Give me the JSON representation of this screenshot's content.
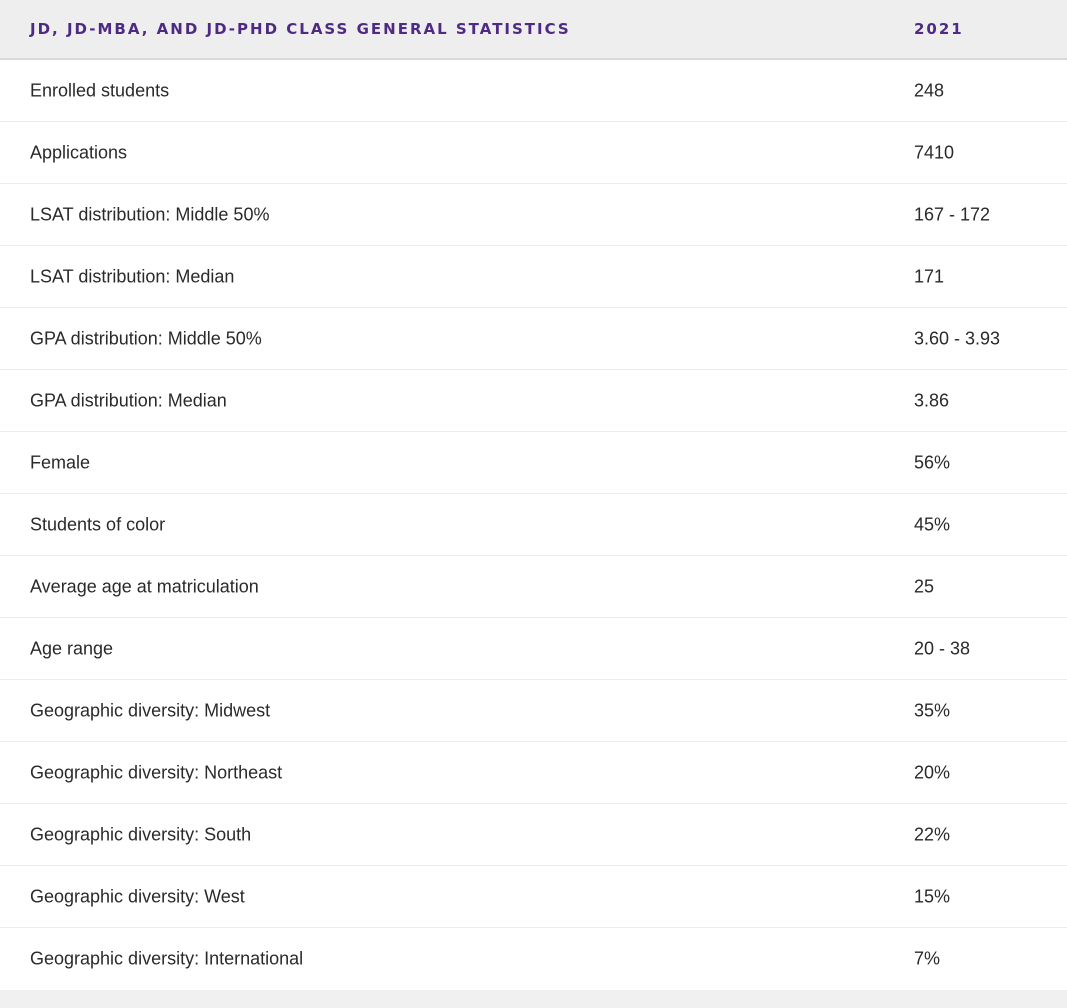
{
  "table": {
    "header": {
      "label": "JD, JD-MBA, AND JD-PHD CLASS GENERAL STATISTICS",
      "value": "2021"
    },
    "rows": [
      {
        "label": "Enrolled students",
        "value": "248"
      },
      {
        "label": "Applications",
        "value": "7410"
      },
      {
        "label": "LSAT distribution: Middle 50%",
        "value": "167 - 172"
      },
      {
        "label": "LSAT distribution: Median",
        "value": "171"
      },
      {
        "label": "GPA distribution: Middle 50%",
        "value": "3.60 - 3.93"
      },
      {
        "label": "GPA distribution: Median",
        "value": "3.86"
      },
      {
        "label": "Female",
        "value": "56%"
      },
      {
        "label": "Students of color",
        "value": "45%"
      },
      {
        "label": "Average age at matriculation",
        "value": "25"
      },
      {
        "label": "Age range",
        "value": "20 - 38"
      },
      {
        "label": "Geographic diversity: Midwest",
        "value": "35%"
      },
      {
        "label": "Geographic diversity: Northeast",
        "value": "20%"
      },
      {
        "label": "Geographic diversity: South",
        "value": "22%"
      },
      {
        "label": "Geographic diversity: West",
        "value": "15%"
      },
      {
        "label": "Geographic diversity: International",
        "value": "7%"
      }
    ]
  },
  "colors": {
    "header_text": "#4e2a84",
    "header_background": "#eeeeee",
    "body_text": "#2a2a2a",
    "row_divider": "#ececec",
    "footer_background": "#f0f0f0"
  }
}
